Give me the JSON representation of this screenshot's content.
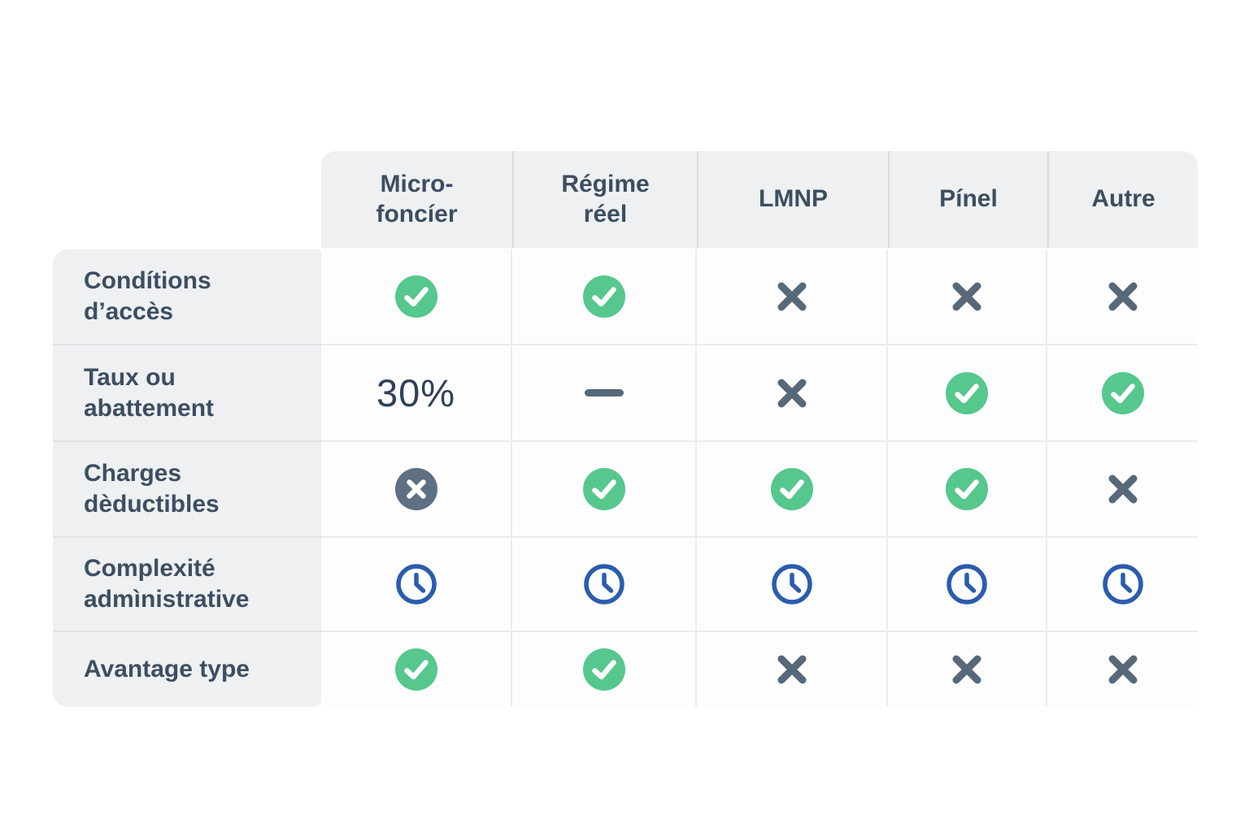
{
  "colors": {
    "check_green": "#56c78d",
    "slate": "#576879",
    "slate_circle": "#5e7083",
    "clock_blue": "#2b5cad",
    "text_dark": "#3d4e61",
    "header_bg": "#eef0f1",
    "header_divider": "#d9dbdd",
    "label_divider": "#e0e2e4",
    "cell_border": "#eaeced"
  },
  "table": {
    "columns": [
      {
        "key": "micro-foncier",
        "label": "Micro-\nfoncíer"
      },
      {
        "key": "regime-reel",
        "label": "Régime\nréel"
      },
      {
        "key": "lmnp",
        "label": "LMNP"
      },
      {
        "key": "pinel",
        "label": "Pínel"
      },
      {
        "key": "autre",
        "label": "Autre"
      }
    ],
    "rows": [
      {
        "key": "conditions-acces",
        "label": "Condítions\nd’accès",
        "cells": [
          {
            "icon": "check-circle"
          },
          {
            "icon": "check-circle"
          },
          {
            "icon": "x-mark"
          },
          {
            "icon": "x-mark"
          },
          {
            "icon": "x-mark"
          }
        ]
      },
      {
        "key": "taux-abattement",
        "label": "Taux ou\nabattement",
        "cells": [
          {
            "text": "30%"
          },
          {
            "icon": "dash"
          },
          {
            "icon": "x-mark"
          },
          {
            "icon": "check-circle"
          },
          {
            "icon": "check-circle"
          }
        ]
      },
      {
        "key": "charges-deductibles",
        "label": "Charges\ndèductibles",
        "cells": [
          {
            "icon": "x-circle"
          },
          {
            "icon": "check-circle"
          },
          {
            "icon": "check-circle"
          },
          {
            "icon": "check-circle"
          },
          {
            "icon": "x-mark"
          }
        ]
      },
      {
        "key": "complexite-administrative",
        "label": "Complexité\nadmìnistrative",
        "cells": [
          {
            "icon": "clock"
          },
          {
            "icon": "clock"
          },
          {
            "icon": "clock"
          },
          {
            "icon": "clock"
          },
          {
            "icon": "clock"
          }
        ]
      },
      {
        "key": "avantage-type",
        "label": "Avantage type",
        "cells": [
          {
            "icon": "check-circle"
          },
          {
            "icon": "check-circle"
          },
          {
            "icon": "x-mark"
          },
          {
            "icon": "x-mark"
          },
          {
            "icon": "x-mark"
          }
        ]
      }
    ]
  },
  "chart_data": {
    "type": "table",
    "columns": [
      "Micro-foncíer",
      "Régime réel",
      "LMNP",
      "Pínel",
      "Autre"
    ],
    "rows": [
      "Condítions d’accès",
      "Taux ou abattement",
      "Charges dèductibles",
      "Complexité admìnistrative",
      "Avantage type"
    ],
    "cells": [
      [
        "check",
        "check",
        "cross",
        "cross",
        "cross"
      ],
      [
        "30%",
        "dash",
        "cross",
        "check",
        "check"
      ],
      [
        "cross-circle",
        "check",
        "check",
        "check",
        "cross"
      ],
      [
        "clock",
        "clock",
        "clock",
        "clock",
        "clock"
      ],
      [
        "check",
        "check",
        "cross",
        "cross",
        "cross"
      ]
    ]
  }
}
